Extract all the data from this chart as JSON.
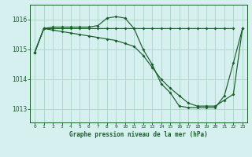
{
  "title": "Graphe pression niveau de la mer (hPa)",
  "bg_color": "#d6f0f0",
  "grid_color": "#b0d8cc",
  "line_color": "#1a5c2a",
  "xlim": [
    -0.5,
    23.5
  ],
  "ylim": [
    1012.55,
    1016.5
  ],
  "yticks": [
    1013,
    1014,
    1015,
    1016
  ],
  "xticks": [
    0,
    1,
    2,
    3,
    4,
    5,
    6,
    7,
    8,
    9,
    10,
    11,
    12,
    13,
    14,
    15,
    16,
    17,
    18,
    19,
    20,
    21,
    22,
    23
  ],
  "series1_x": [
    0,
    1,
    2,
    3,
    4,
    5,
    6,
    7,
    8,
    9,
    10,
    11,
    12,
    13,
    14,
    15,
    16,
    17,
    18,
    19,
    20,
    21,
    22
  ],
  "series1_y": [
    1014.9,
    1015.7,
    1015.7,
    1015.7,
    1015.7,
    1015.7,
    1015.7,
    1015.7,
    1015.7,
    1015.7,
    1015.7,
    1015.7,
    1015.7,
    1015.7,
    1015.7,
    1015.7,
    1015.7,
    1015.7,
    1015.7,
    1015.7,
    1015.7,
    1015.7,
    1015.7
  ],
  "series2_x": [
    0,
    1,
    2,
    3,
    4,
    5,
    6,
    7,
    8,
    9,
    10,
    11,
    12,
    13,
    14,
    15,
    16,
    17,
    18,
    19,
    20,
    21,
    22,
    23
  ],
  "series2_y": [
    1014.9,
    1015.7,
    1015.75,
    1015.75,
    1015.75,
    1015.75,
    1015.75,
    1015.8,
    1016.05,
    1016.1,
    1016.05,
    1015.7,
    1015.0,
    1014.5,
    1013.85,
    1013.55,
    1013.1,
    1013.05,
    1013.05,
    1013.05,
    1013.05,
    1013.45,
    1014.55,
    1015.7
  ],
  "series3_x": [
    0,
    1,
    2,
    3,
    4,
    5,
    6,
    7,
    8,
    9,
    10,
    11,
    12,
    13,
    14,
    15,
    16,
    17,
    18,
    19,
    20,
    21,
    22,
    23
  ],
  "series3_y": [
    1014.9,
    1015.7,
    1015.65,
    1015.6,
    1015.55,
    1015.5,
    1015.45,
    1015.4,
    1015.35,
    1015.3,
    1015.2,
    1015.1,
    1014.8,
    1014.4,
    1014.0,
    1013.7,
    1013.45,
    1013.2,
    1013.1,
    1013.1,
    1013.1,
    1013.3,
    1013.5,
    1015.7
  ]
}
